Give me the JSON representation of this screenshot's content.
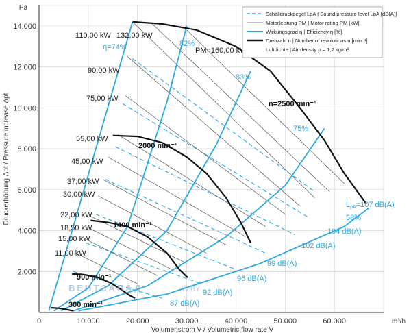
{
  "chart_data": {
    "type": "line",
    "title": "",
    "xlabel": "Volumenstrom V̇ / Volumetric flow rate V̇",
    "ylabel": "Druckerhöhung Δpt / Pressure increase Δpt",
    "x_unit": "m³/h",
    "y_unit": "Pa",
    "xlim": [
      0,
      70000
    ],
    "ylim": [
      0,
      15000
    ],
    "x_ticks": [
      "0",
      "10.000",
      "20.000",
      "30.000",
      "40.000",
      "50.000",
      "60.000",
      "m³/h"
    ],
    "y_ticks": [
      "2.000",
      "4.000",
      "6.000",
      "8.000",
      "10.000",
      "12.000",
      "14.000",
      "Pa"
    ],
    "x_tick_values": [
      0,
      10000,
      20000,
      30000,
      40000,
      50000,
      60000
    ],
    "y_tick_values": [
      2000,
      4000,
      6000,
      8000,
      10000,
      12000,
      14000
    ],
    "legend": {
      "placement": "top-right",
      "items": [
        {
          "style": "dashed-blue",
          "text": "Schalldruckpegel LpA | Sound pressure level LpA [dB(A)]"
        },
        {
          "style": "thin-black",
          "text": "Motorleistung PM | Motor rating PM [kW]"
        },
        {
          "style": "blue",
          "text": "Wirkungsgrad η | Efficiency η [%]"
        },
        {
          "style": "thick-black",
          "text": "Drehzahl n | Number of revolutions n [min⁻¹]"
        },
        {
          "style": "none",
          "text": "Luftdichte | Air density ρ = 1,2 kg/m³"
        }
      ]
    },
    "speed_curves": [
      {
        "name": "n=2500 min⁻¹",
        "label": "n=2500 min⁻¹",
        "x": [
          19000,
          25000,
          32000,
          40000,
          47000,
          53000,
          58000,
          62000,
          65000,
          66500
        ],
        "y": [
          14200,
          14100,
          13800,
          13000,
          11800,
          10000,
          8400,
          6800,
          5800,
          5300
        ]
      },
      {
        "name": "2000 min⁻¹",
        "label": "2000 min⁻¹",
        "x": [
          15000,
          20000,
          25000,
          30000,
          34000,
          38000,
          41000,
          43000
        ],
        "y": [
          8650,
          8600,
          8300,
          7600,
          6800,
          5600,
          4400,
          3400
        ]
      },
      {
        "name": "1400 min⁻¹",
        "label": "1400 min⁻¹",
        "x": [
          10500,
          14000,
          18000,
          22000,
          26000,
          28500,
          30200
        ],
        "y": [
          4500,
          4400,
          4200,
          3700,
          2900,
          2100,
          1700
        ]
      },
      {
        "name": "900 min⁻¹",
        "label": "900 min⁻¹",
        "x": [
          6700,
          9000,
          12000,
          14500,
          16800,
          18500,
          19500
        ],
        "y": [
          1880,
          1850,
          1700,
          1450,
          1100,
          820,
          700
        ]
      },
      {
        "name": "300 min⁻¹",
        "label": "300 min⁻¹",
        "x": [
          2500,
          4000,
          5500,
          6500,
          7000
        ],
        "y": [
          230,
          210,
          150,
          100,
          80
        ]
      }
    ],
    "efficiency_lines": [
      {
        "label": "η=74%",
        "x": [
          2000,
          19000
        ],
        "y": [
          80,
          14200
        ]
      },
      {
        "label": "82%",
        "x": [
          3000,
          10000,
          18000,
          26000,
          30000
        ],
        "y": [
          80,
          1200,
          4200,
          10300,
          14000
        ]
      },
      {
        "label": "83%",
        "x": [
          4500,
          14000,
          26000,
          36000,
          43000
        ],
        "y": [
          80,
          1300,
          4000,
          8200,
          11800
        ]
      },
      {
        "label": "75%",
        "x": [
          7000,
          22000,
          38000,
          50000,
          58000
        ],
        "y": [
          80,
          1300,
          3700,
          6200,
          9000
        ]
      },
      {
        "label": "58%",
        "x": [
          8000,
          26000,
          45000,
          62000,
          67000
        ],
        "y": [
          80,
          900,
          2400,
          4200,
          5100
        ]
      }
    ],
    "motor_power_labels": [
      "110,00 kW",
      "132,00 kW",
      "PM=160,00 kW",
      "90,00 kW",
      "75,00 kW",
      "55,00 kW",
      "45,00 kW",
      "37,00 kW",
      "30,00 kW",
      "22,00 kW",
      "18,50 kW",
      "15,00 kW",
      "11,00 kW"
    ],
    "motor_power_lines": [
      {
        "label": "110,00 kW",
        "x": [
          19000,
          56000
        ],
        "y": [
          14200,
          5600
        ]
      },
      {
        "label": "132,00 kW",
        "x": [
          23000,
          59000
        ],
        "y": [
          14100,
          5900
        ]
      },
      {
        "label": "PM=160,00 kW",
        "x": [
          30000,
          62000
        ],
        "y": [
          13800,
          6300
        ]
      },
      {
        "label": "90,00 kW",
        "x": [
          18000,
          53000
        ],
        "y": [
          12500,
          5200
        ]
      },
      {
        "label": "75,00 kW",
        "x": [
          17500,
          50000
        ],
        "y": [
          10600,
          4800
        ]
      },
      {
        "label": "55,00 kW",
        "x": [
          16000,
          46000
        ],
        "y": [
          8700,
          4200
        ]
      },
      {
        "label": "45,00 kW",
        "x": [
          14000,
          42000
        ],
        "y": [
          7600,
          3700
        ]
      },
      {
        "label": "37,00 kW",
        "x": [
          13000,
          38000
        ],
        "y": [
          6500,
          3300
        ]
      },
      {
        "label": "30,00 kW",
        "x": [
          12000,
          34000
        ],
        "y": [
          5700,
          2900
        ]
      },
      {
        "label": "22,00 kW",
        "x": [
          10500,
          30000
        ],
        "y": [
          4700,
          2400
        ]
      },
      {
        "label": "18,50 kW",
        "x": [
          9500,
          27000
        ],
        "y": [
          4200,
          2100
        ]
      },
      {
        "label": "15,00 kW",
        "x": [
          8500,
          24000
        ],
        "y": [
          3700,
          1800
        ]
      },
      {
        "label": "11,00 kW",
        "x": [
          7500,
          20000
        ],
        "y": [
          2900,
          1400
        ]
      }
    ],
    "sound_levels": [
      {
        "label": "LpA=107 dB(A)",
        "x": [
          19000,
          56000
        ],
        "y": [
          12400,
          5900
        ]
      },
      {
        "label": "104 dB(A)",
        "x": [
          17000,
          55000
        ],
        "y": [
          10200,
          4600
        ]
      },
      {
        "label": "102 dB(A)",
        "x": [
          15500,
          52000
        ],
        "y": [
          8100,
          3800
        ]
      },
      {
        "label": "99 dB(A)",
        "x": [
          13500,
          46000
        ],
        "y": [
          6500,
          2900
        ]
      },
      {
        "label": "96 dB(A)",
        "x": [
          11500,
          40000
        ],
        "y": [
          4800,
          2100
        ]
      },
      {
        "label": "92 dB(A)",
        "x": [
          9500,
          33000
        ],
        "y": [
          3400,
          1400
        ]
      },
      {
        "label": "87 dB(A)",
        "x": [
          7000,
          25000
        ],
        "y": [
          2000,
          700
        ]
      }
    ],
    "lpa_label_prefix": "L",
    "lpa_label_sub": "pA",
    "lpa_label_suffix": "=107 dB(A)",
    "efficiency_label_first": "η=74%",
    "watermark": "ВЕНТЗАПАД",
    "watermark_url": "W.BY",
    "colors": {
      "blue": "#29a9e0",
      "black": "#111111",
      "gray_line": "#555555",
      "grid": "#cccccc"
    },
    "grid": true
  }
}
